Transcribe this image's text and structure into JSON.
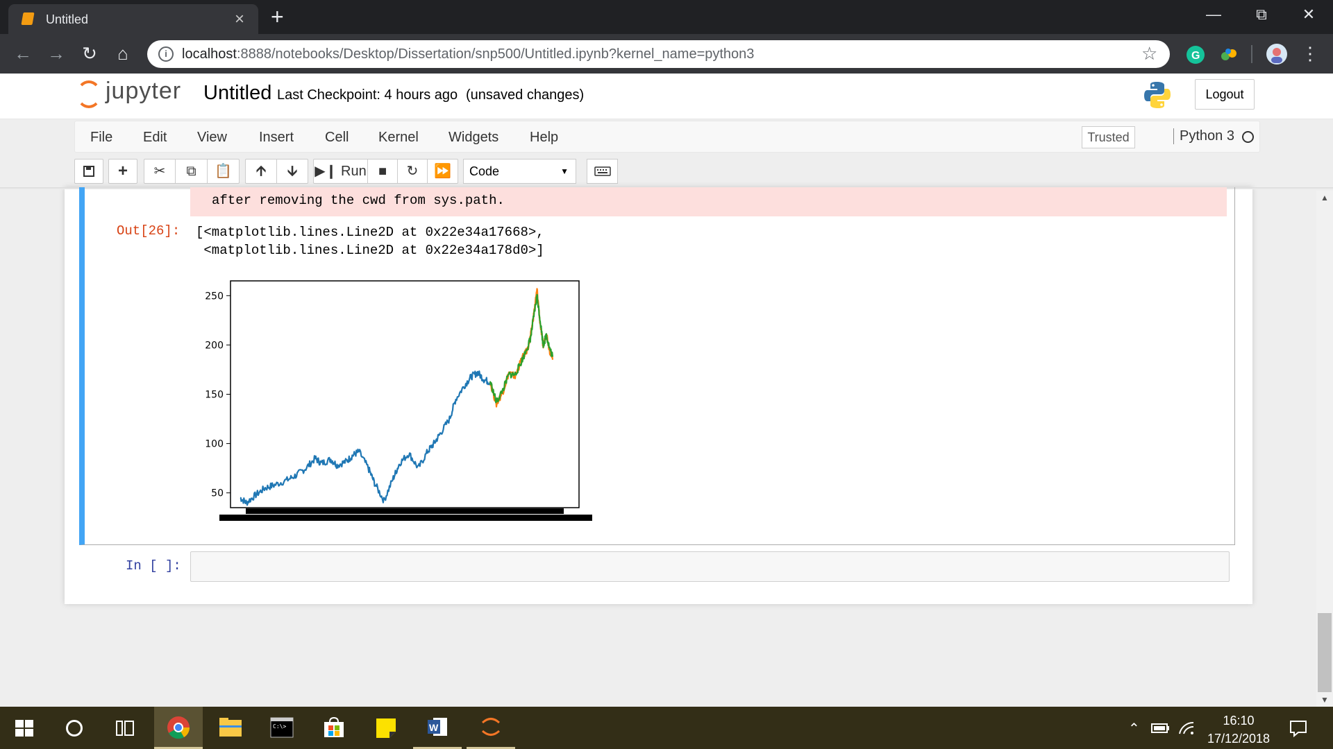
{
  "browser": {
    "tab_title": "Untitled",
    "url_host": "localhost",
    "url_rest": ":8888/notebooks/Desktop/Dissertation/snp500/Untitled.ipynb?kernel_name=python3"
  },
  "jupyter": {
    "logo_text": "jupyter",
    "notebook_title": "Untitled",
    "checkpoint": "Last Checkpoint: 4 hours ago",
    "status": "(unsaved changes)",
    "logout_label": "Logout",
    "menu": [
      "File",
      "Edit",
      "View",
      "Insert",
      "Cell",
      "Kernel",
      "Widgets",
      "Help"
    ],
    "trusted_label": "Trusted",
    "kernel_name": "Python 3",
    "toolbar": {
      "run_label": "Run",
      "cell_type": "Code"
    }
  },
  "cells": {
    "stderr_line": "after removing the cwd from sys.path.",
    "out_prompt": "Out[26]:",
    "out_lines": [
      "[<matplotlib.lines.Line2D at 0x22e34a17668>,",
      " <matplotlib.lines.Line2D at 0x22e34a178d0>]"
    ],
    "in_prompt": "In [ ]:"
  },
  "chart_data": {
    "type": "line",
    "title": "",
    "xlabel": "",
    "ylabel": "",
    "ylim": [
      35,
      265
    ],
    "yticks": [
      50,
      100,
      150,
      200,
      250
    ],
    "grid": false,
    "series": [
      {
        "color": "#1f77b4",
        "x": [
          0,
          0.02,
          0.05,
          0.08,
          0.11,
          0.15,
          0.18,
          0.21,
          0.24,
          0.26,
          0.29,
          0.31,
          0.34,
          0.36,
          0.38,
          0.41,
          0.43,
          0.46,
          0.49,
          0.51,
          0.54,
          0.57,
          0.6,
          0.62,
          0.64,
          0.67,
          0.69,
          0.72,
          0.74,
          0.76,
          0.78,
          0.8
        ],
        "y": [
          45,
          40,
          48,
          55,
          58,
          63,
          68,
          75,
          85,
          80,
          84,
          78,
          82,
          88,
          92,
          75,
          60,
          42,
          65,
          80,
          90,
          75,
          92,
          100,
          110,
          125,
          145,
          160,
          168,
          172,
          165,
          162
        ]
      },
      {
        "color": "#ff7f0e",
        "x": [
          0.8,
          0.82,
          0.84,
          0.86,
          0.88,
          0.9,
          0.92,
          0.93,
          0.94,
          0.95,
          0.96,
          0.97,
          0.98,
          0.99,
          1.0
        ],
        "y": [
          162,
          140,
          152,
          172,
          168,
          185,
          196,
          210,
          232,
          256,
          222,
          198,
          212,
          195,
          185
        ]
      },
      {
        "color": "#2ca02c",
        "x": [
          0.8,
          0.82,
          0.84,
          0.86,
          0.88,
          0.9,
          0.92,
          0.93,
          0.94,
          0.95,
          0.96,
          0.97,
          0.98,
          0.99,
          1.0
        ],
        "y": [
          163,
          142,
          154,
          170,
          170,
          183,
          198,
          208,
          230,
          250,
          225,
          200,
          210,
          197,
          188
        ]
      }
    ]
  },
  "taskbar": {
    "time": "16:10",
    "date": "17/12/2018"
  }
}
